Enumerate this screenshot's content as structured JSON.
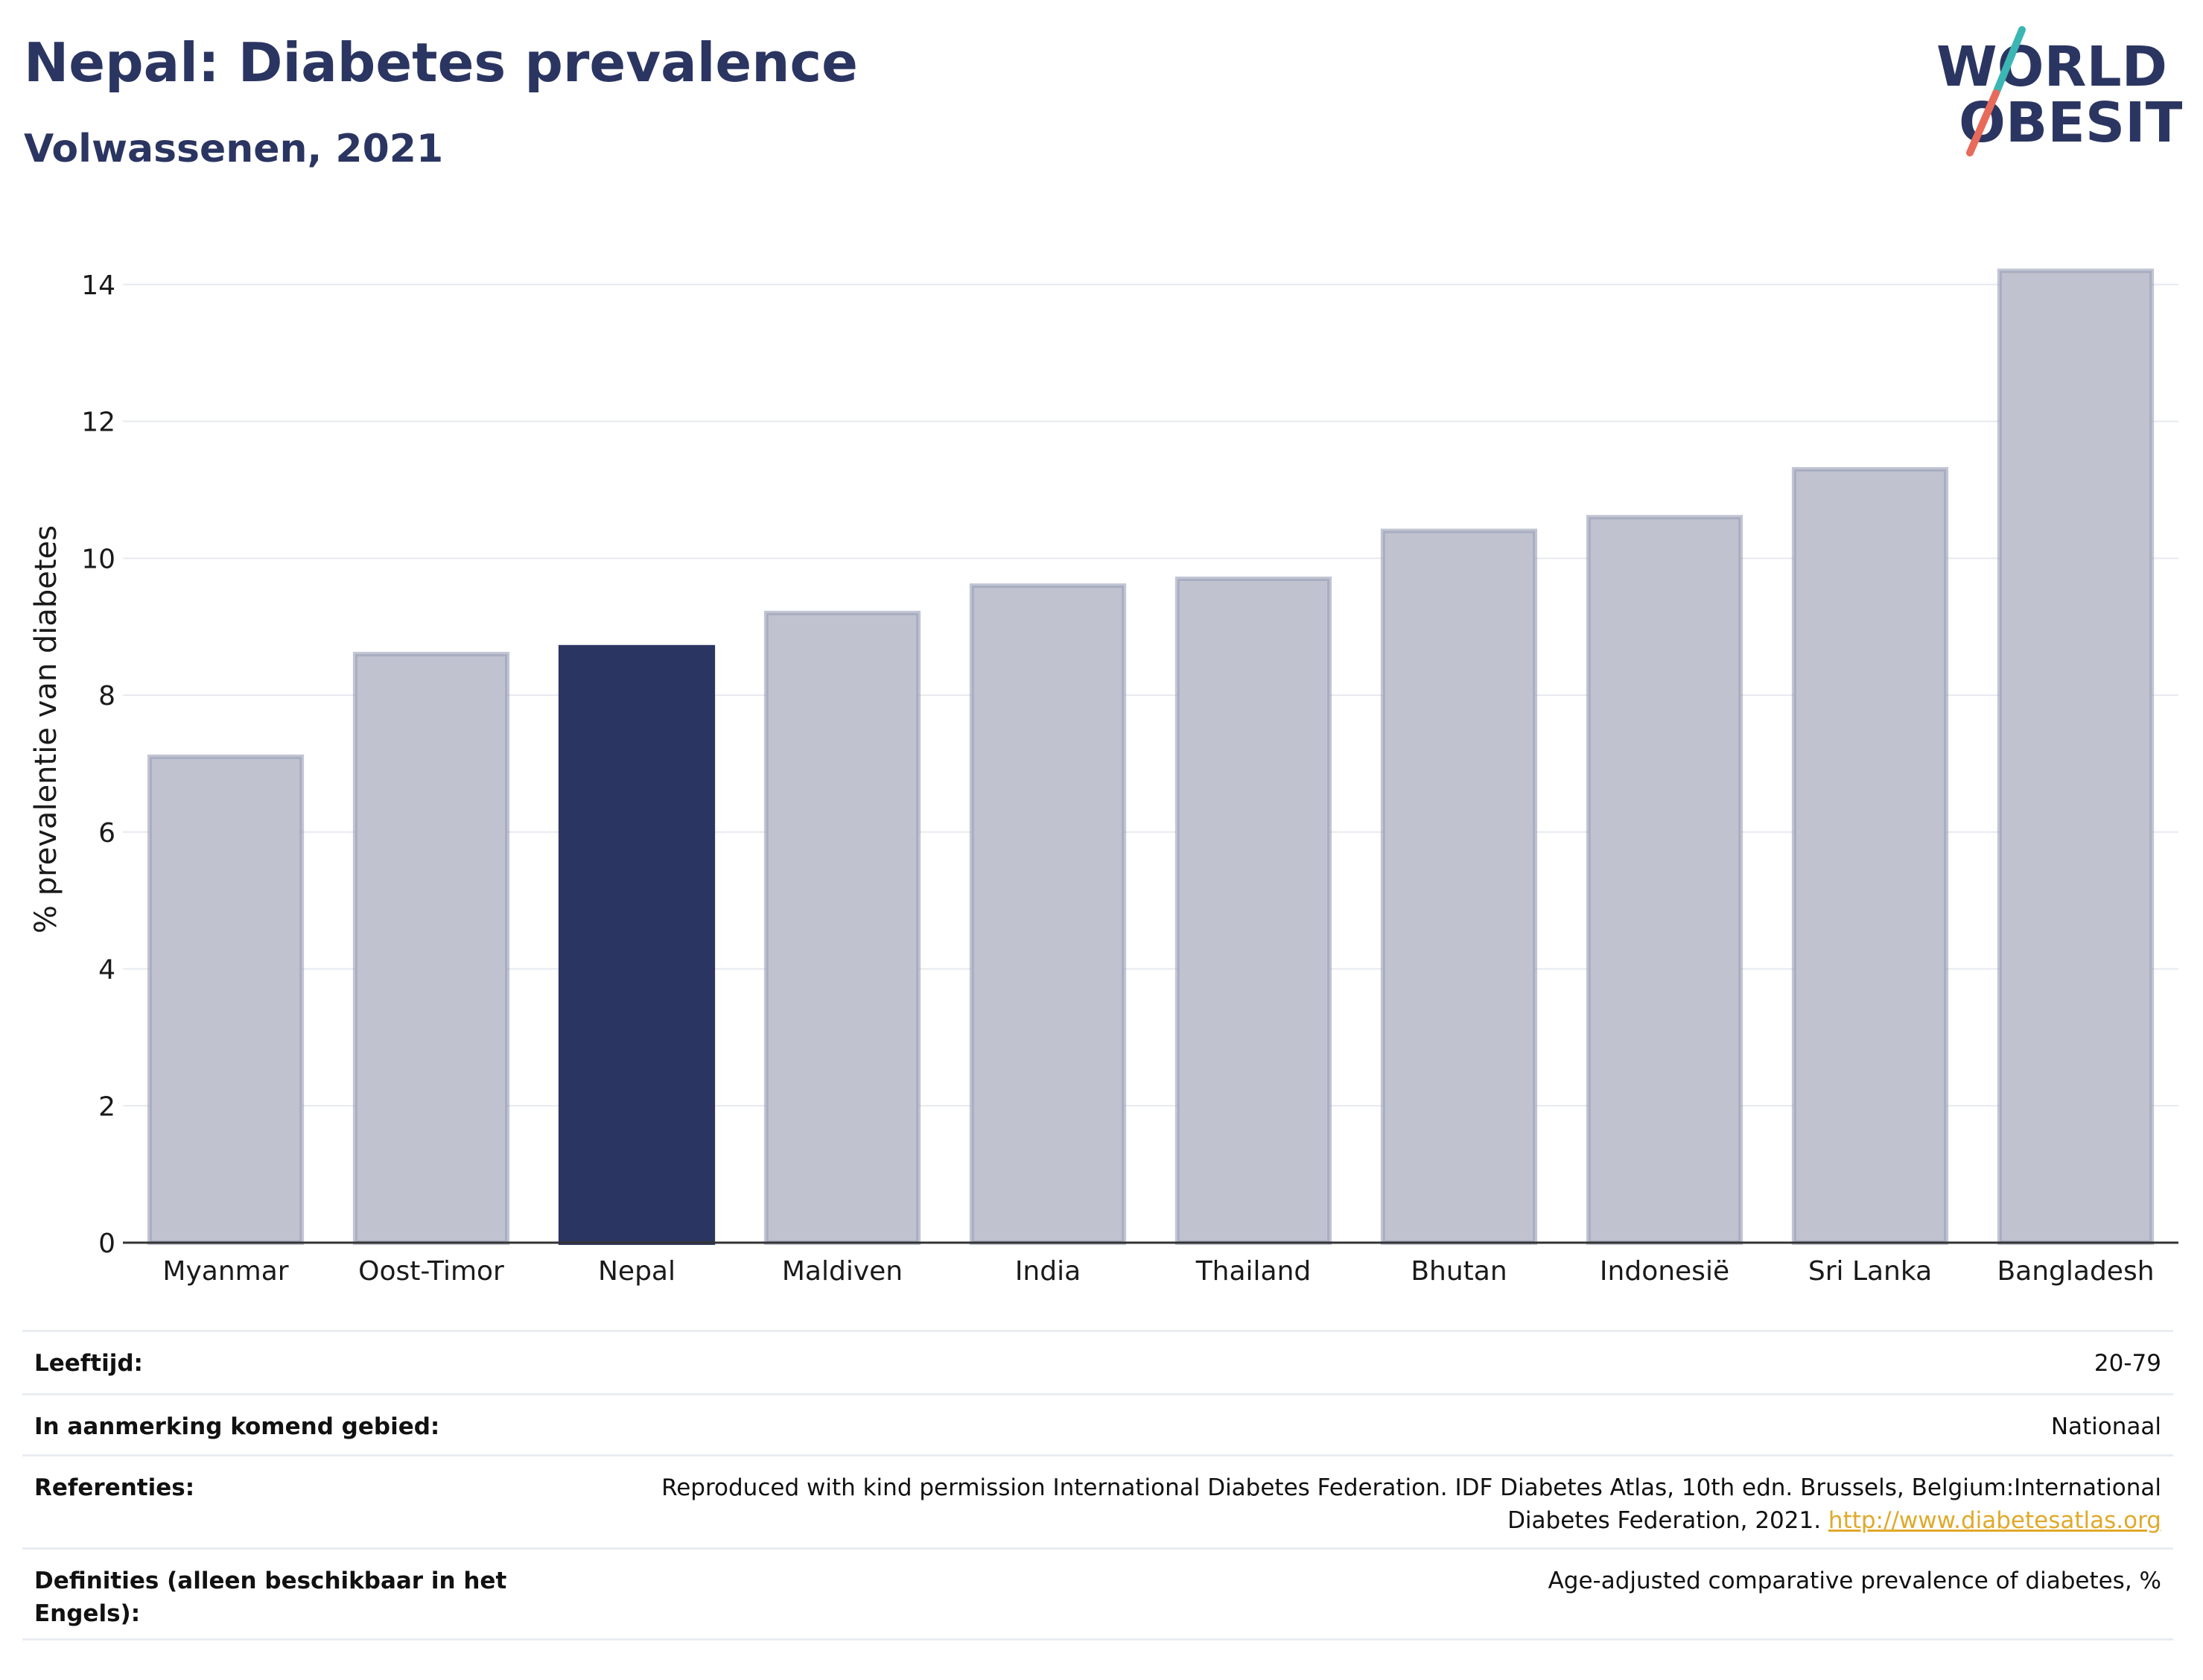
{
  "header": {
    "title": "Nepal: Diabetes prevalence",
    "subtitle": "Volwassenen, 2021",
    "logo_line1": "WORLD",
    "logo_line2": "OBESITY"
  },
  "chart_data": {
    "type": "bar",
    "title": "Nepal: Diabetes prevalence",
    "subtitle": "Volwassenen, 2021",
    "categories": [
      "Myanmar",
      "Oost-Timor",
      "Nepal",
      "Maldiven",
      "India",
      "Thailand",
      "Bhutan",
      "Indonesië",
      "Sri Lanka",
      "Bangladesh"
    ],
    "values": [
      7.1,
      8.6,
      8.7,
      9.2,
      9.6,
      9.7,
      10.4,
      10.6,
      11.3,
      14.2
    ],
    "highlight": "Nepal",
    "ylabel": "% prevalentie van diabetes",
    "xlabel": "",
    "ylim": [
      0,
      15
    ],
    "yticks": [
      0,
      2,
      4,
      6,
      8,
      10,
      12,
      14
    ],
    "grid": true,
    "colors": {
      "bar": "#c0c3cf",
      "bar_border": "#9a9fb5",
      "highlight": "#2b3561"
    }
  },
  "meta": {
    "rows": [
      {
        "key": "Leeftijd:",
        "value": "20-79"
      },
      {
        "key": "In aanmerking komend gebied:",
        "value": "Nationaal"
      },
      {
        "key": "Referenties:",
        "value": "Reproduced with kind permission International Diabetes Federation.  IDF Diabetes Atlas, 10th edn. Brussels, Belgium:International Diabetes Federation, 2021.",
        "link": "http://www.diabetesatlas.org"
      },
      {
        "key": "Definities (alleen beschikbaar in het Engels):",
        "value": "Age-adjusted comparative prevalence of diabetes, %"
      }
    ]
  }
}
